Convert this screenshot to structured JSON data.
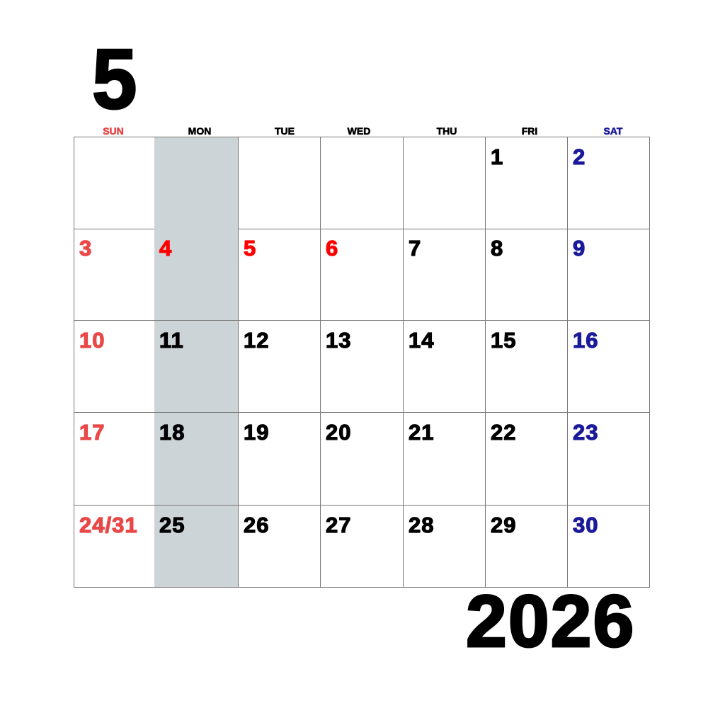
{
  "month": "5",
  "year": "2026",
  "colors": {
    "sunday": "#e84848",
    "holiday": "#ff0000",
    "saturday": "#1a1a9a",
    "weekday": "#000000",
    "shaded_column": "#cdd4d8"
  },
  "weekdays": [
    {
      "label": "SUN",
      "type": "sunday"
    },
    {
      "label": "MON",
      "type": "weekday"
    },
    {
      "label": "TUE",
      "type": "weekday"
    },
    {
      "label": "WED",
      "type": "weekday"
    },
    {
      "label": "THU",
      "type": "weekday"
    },
    {
      "label": "FRI",
      "type": "weekday"
    },
    {
      "label": "SAT",
      "type": "saturday"
    }
  ],
  "shaded_weekday": "MON",
  "weeks": [
    [
      {
        "day": "",
        "type": "sunday"
      },
      {
        "day": "",
        "type": "weekday"
      },
      {
        "day": "",
        "type": "weekday"
      },
      {
        "day": "",
        "type": "weekday"
      },
      {
        "day": "",
        "type": "weekday"
      },
      {
        "day": "1",
        "type": "weekday"
      },
      {
        "day": "2",
        "type": "saturday"
      }
    ],
    [
      {
        "day": "3",
        "type": "sunday"
      },
      {
        "day": "4",
        "type": "holiday"
      },
      {
        "day": "5",
        "type": "holiday"
      },
      {
        "day": "6",
        "type": "holiday"
      },
      {
        "day": "7",
        "type": "weekday"
      },
      {
        "day": "8",
        "type": "weekday"
      },
      {
        "day": "9",
        "type": "saturday"
      }
    ],
    [
      {
        "day": "10",
        "type": "sunday"
      },
      {
        "day": "11",
        "type": "weekday"
      },
      {
        "day": "12",
        "type": "weekday"
      },
      {
        "day": "13",
        "type": "weekday"
      },
      {
        "day": "14",
        "type": "weekday"
      },
      {
        "day": "15",
        "type": "weekday"
      },
      {
        "day": "16",
        "type": "saturday"
      }
    ],
    [
      {
        "day": "17",
        "type": "sunday"
      },
      {
        "day": "18",
        "type": "weekday"
      },
      {
        "day": "19",
        "type": "weekday"
      },
      {
        "day": "20",
        "type": "weekday"
      },
      {
        "day": "21",
        "type": "weekday"
      },
      {
        "day": "22",
        "type": "weekday"
      },
      {
        "day": "23",
        "type": "saturday"
      }
    ],
    [
      {
        "day": "24/31",
        "type": "sunday"
      },
      {
        "day": "25",
        "type": "weekday"
      },
      {
        "day": "26",
        "type": "weekday"
      },
      {
        "day": "27",
        "type": "weekday"
      },
      {
        "day": "28",
        "type": "weekday"
      },
      {
        "day": "29",
        "type": "weekday"
      },
      {
        "day": "30",
        "type": "saturday"
      }
    ]
  ]
}
